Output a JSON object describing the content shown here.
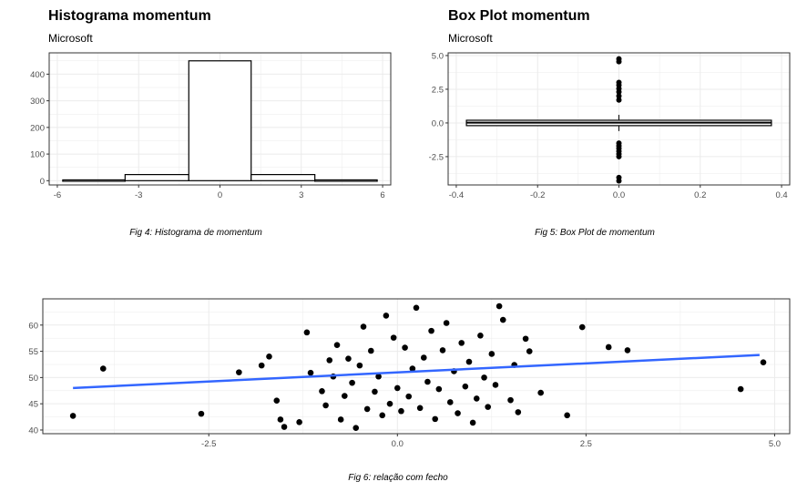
{
  "colors": {
    "grid": "#ebebeb",
    "panel_border": "#333333",
    "text": "#4d4d4d",
    "trend": "#3366ff",
    "point": "#000000"
  },
  "figures": {
    "fig4": {
      "caption": "Fig 4: Histograma de momentum"
    },
    "fig5": {
      "caption": "Fig 5: Box Plot de momentum"
    },
    "fig6": {
      "caption": "Fig 6: relação com fecho"
    }
  },
  "chart_data": [
    {
      "type": "bar",
      "title": "Histograma momentum",
      "subtitle": "Microsoft",
      "xlabel": "",
      "ylabel": "",
      "bins": [
        {
          "x0": -5.8,
          "x1": -3.5,
          "count": 3
        },
        {
          "x0": -3.5,
          "x1": -1.15,
          "count": 23
        },
        {
          "x0": -1.15,
          "x1": 1.15,
          "count": 450
        },
        {
          "x0": 1.15,
          "x1": 3.5,
          "count": 23
        },
        {
          "x0": 3.5,
          "x1": 5.8,
          "count": 3
        }
      ],
      "xlim": [
        -6.3,
        6.3
      ],
      "ylim": [
        -16,
        480
      ],
      "xticks": [
        -6,
        -3,
        0,
        3,
        6
      ],
      "xtick_labels": [
        "-6",
        "-3",
        "0",
        "3",
        "6"
      ],
      "yticks": [
        0,
        100,
        200,
        300,
        400
      ],
      "ytick_labels": [
        "0",
        "100",
        "200",
        "300",
        "400"
      ],
      "grid": true
    },
    {
      "type": "box",
      "title": "Box Plot momentum",
      "subtitle": "Microsoft",
      "xlabel": "",
      "ylabel": "",
      "box": {
        "xmin": -0.375,
        "xmax": 0.375,
        "q1": -0.2,
        "median": 0.02,
        "q3": 0.2,
        "whisker_low": -0.6,
        "whisker_high": 0.6
      },
      "outliers": [
        4.75,
        4.55,
        3.0,
        2.8,
        2.55,
        2.3,
        2.0,
        1.7,
        -1.5,
        -1.7,
        -1.9,
        -2.1,
        -2.3,
        -2.5,
        -4.05,
        -4.3
      ],
      "xlim": [
        -0.42,
        0.42
      ],
      "ylim": [
        -4.6,
        5.2
      ],
      "xticks": [
        -0.4,
        -0.2,
        0.0,
        0.2,
        0.4
      ],
      "xtick_labels": [
        "-0.4",
        "-0.2",
        "0.0",
        "0.2",
        "0.4"
      ],
      "yticks": [
        -2.5,
        0.0,
        2.5,
        5.0
      ],
      "ytick_labels": [
        "-2.5",
        "0.0",
        "2.5",
        "5.0"
      ],
      "grid": true
    },
    {
      "type": "scatter",
      "xlabel": "",
      "ylabel": "",
      "xlim": [
        -4.7,
        5.2
      ],
      "ylim": [
        39.3,
        65
      ],
      "xticks": [
        -2.5,
        0.0,
        2.5,
        5.0
      ],
      "xtick_labels": [
        "-2.5",
        "0.0",
        "2.5",
        "5.0"
      ],
      "yticks": [
        40,
        45,
        50,
        55,
        60
      ],
      "ytick_labels": [
        "40",
        "45",
        "50",
        "55",
        "60"
      ],
      "trend_line": {
        "x": [
          -4.3,
          4.8
        ],
        "y": [
          48.0,
          54.3
        ]
      },
      "points": [
        {
          "x": -4.3,
          "y": 42.7
        },
        {
          "x": -3.9,
          "y": 51.7
        },
        {
          "x": -2.6,
          "y": 43.1
        },
        {
          "x": -2.1,
          "y": 51.0
        },
        {
          "x": -1.8,
          "y": 52.3
        },
        {
          "x": -1.7,
          "y": 54.0
        },
        {
          "x": -1.6,
          "y": 45.6
        },
        {
          "x": -1.55,
          "y": 42.0
        },
        {
          "x": -1.5,
          "y": 40.6
        },
        {
          "x": -1.3,
          "y": 41.5
        },
        {
          "x": -1.2,
          "y": 58.6
        },
        {
          "x": -1.15,
          "y": 50.9
        },
        {
          "x": -1.0,
          "y": 47.4
        },
        {
          "x": -0.95,
          "y": 44.7
        },
        {
          "x": -0.9,
          "y": 53.3
        },
        {
          "x": -0.85,
          "y": 50.2
        },
        {
          "x": -0.8,
          "y": 56.2
        },
        {
          "x": -0.75,
          "y": 42.0
        },
        {
          "x": -0.7,
          "y": 46.5
        },
        {
          "x": -0.65,
          "y": 53.6
        },
        {
          "x": -0.6,
          "y": 49.0
        },
        {
          "x": -0.55,
          "y": 40.4
        },
        {
          "x": -0.5,
          "y": 52.3
        },
        {
          "x": -0.45,
          "y": 59.7
        },
        {
          "x": -0.4,
          "y": 44.0
        },
        {
          "x": -0.35,
          "y": 55.1
        },
        {
          "x": -0.3,
          "y": 47.3
        },
        {
          "x": -0.25,
          "y": 50.2
        },
        {
          "x": -0.2,
          "y": 42.8
        },
        {
          "x": -0.15,
          "y": 61.8
        },
        {
          "x": -0.1,
          "y": 45.0
        },
        {
          "x": -0.05,
          "y": 57.6
        },
        {
          "x": 0.0,
          "y": 48.0
        },
        {
          "x": 0.05,
          "y": 43.6
        },
        {
          "x": 0.1,
          "y": 55.7
        },
        {
          "x": 0.15,
          "y": 46.4
        },
        {
          "x": 0.2,
          "y": 51.7
        },
        {
          "x": 0.25,
          "y": 63.3
        },
        {
          "x": 0.3,
          "y": 44.2
        },
        {
          "x": 0.35,
          "y": 53.8
        },
        {
          "x": 0.4,
          "y": 49.2
        },
        {
          "x": 0.45,
          "y": 58.9
        },
        {
          "x": 0.5,
          "y": 42.1
        },
        {
          "x": 0.55,
          "y": 47.8
        },
        {
          "x": 0.6,
          "y": 55.2
        },
        {
          "x": 0.65,
          "y": 60.4
        },
        {
          "x": 0.7,
          "y": 45.3
        },
        {
          "x": 0.75,
          "y": 51.2
        },
        {
          "x": 0.8,
          "y": 43.2
        },
        {
          "x": 0.85,
          "y": 56.6
        },
        {
          "x": 0.9,
          "y": 48.3
        },
        {
          "x": 0.95,
          "y": 53.0
        },
        {
          "x": 1.0,
          "y": 41.4
        },
        {
          "x": 1.05,
          "y": 46.0
        },
        {
          "x": 1.1,
          "y": 58.0
        },
        {
          "x": 1.15,
          "y": 50.0
        },
        {
          "x": 1.2,
          "y": 44.4
        },
        {
          "x": 1.25,
          "y": 54.5
        },
        {
          "x": 1.3,
          "y": 48.6
        },
        {
          "x": 1.35,
          "y": 63.6
        },
        {
          "x": 1.4,
          "y": 61.0
        },
        {
          "x": 1.5,
          "y": 45.7
        },
        {
          "x": 1.55,
          "y": 52.4
        },
        {
          "x": 1.6,
          "y": 43.4
        },
        {
          "x": 1.7,
          "y": 57.4
        },
        {
          "x": 1.75,
          "y": 55.0
        },
        {
          "x": 1.9,
          "y": 47.1
        },
        {
          "x": 2.25,
          "y": 42.8
        },
        {
          "x": 2.45,
          "y": 59.6
        },
        {
          "x": 2.8,
          "y": 55.8
        },
        {
          "x": 3.05,
          "y": 55.2
        },
        {
          "x": 4.55,
          "y": 47.8
        },
        {
          "x": 4.85,
          "y": 52.9
        }
      ],
      "grid": true
    }
  ]
}
